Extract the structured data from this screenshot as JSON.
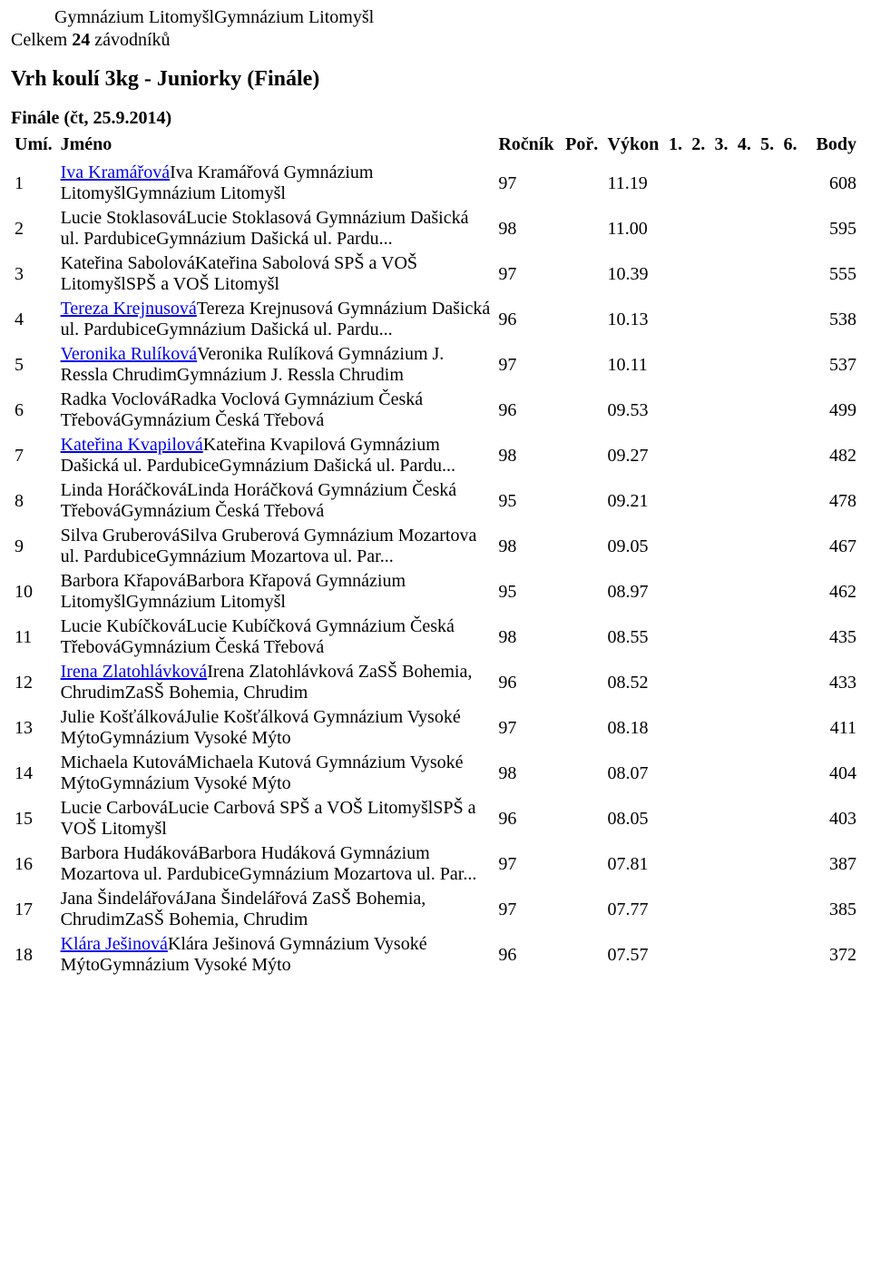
{
  "header": {
    "venue": "Gymnázium LitomyšlGymnázium Litomyšl",
    "summary_pre": "Celkem ",
    "summary_count": "24",
    "summary_post": " závodníků"
  },
  "event": {
    "title": "Vrh koulí 3kg - Juniorky (Finále)",
    "round": "Finále (čt, 25.9.2014)"
  },
  "table": {
    "headers": {
      "place": "Umí.",
      "name": "Jméno",
      "year": "Ročník",
      "por": "Poř.",
      "perf": "Výkon",
      "c1": "1.",
      "c2": "2.",
      "c3": "3.",
      "c4": "4.",
      "c5": "5.",
      "c6": "6.",
      "body": "Body"
    }
  },
  "rows": [
    {
      "place": "1",
      "link": "Iva Kramářová",
      "rest": "Iva Kramářová Gymnázium LitomyšlGymnázium Litomyšl",
      "year": "97",
      "perf": "11.19",
      "body": "608"
    },
    {
      "place": "2",
      "link": "",
      "rest": "Lucie StoklasováLucie Stoklasová Gymnázium Dašická ul. PardubiceGymnázium Dašická ul. Pardu...",
      "year": "98",
      "perf": "11.00",
      "body": "595"
    },
    {
      "place": "3",
      "link": "",
      "rest": "Kateřina SabolováKateřina Sabolová SPŠ a VOŠ LitomyšlSPŠ a VOŠ Litomyšl",
      "year": "97",
      "perf": "10.39",
      "body": "555"
    },
    {
      "place": "4",
      "link": "Tereza Krejnusová",
      "rest": "Tereza Krejnusová Gymnázium Dašická ul. PardubiceGymnázium Dašická ul. Pardu...",
      "year": "96",
      "perf": "10.13",
      "body": "538"
    },
    {
      "place": "5",
      "link": "Veronika Rulíková",
      "rest": "Veronika Rulíková Gymnázium J. Ressla ChrudimGymnázium J. Ressla Chrudim",
      "year": "97",
      "perf": "10.11",
      "body": "537"
    },
    {
      "place": "6",
      "link": "",
      "rest": "Radka VoclováRadka Voclová Gymnázium Česká TřebováGymnázium Česká Třebová",
      "year": "96",
      "perf": "09.53",
      "body": "499"
    },
    {
      "place": "7",
      "link": "Kateřina Kvapilová",
      "rest": "Kateřina Kvapilová Gymnázium Dašická ul. PardubiceGymnázium Dašická ul. Pardu...",
      "year": "98",
      "perf": "09.27",
      "body": "482"
    },
    {
      "place": "8",
      "link": "",
      "rest": "Linda HoráčkováLinda Horáčková Gymnázium Česká TřebováGymnázium Česká Třebová",
      "year": "95",
      "perf": "09.21",
      "body": "478"
    },
    {
      "place": "9",
      "link": "",
      "rest": "Silva GruberováSilva Gruberová Gymnázium Mozartova ul. PardubiceGymnázium Mozartova ul. Par...",
      "year": "98",
      "perf": "09.05",
      "body": "467"
    },
    {
      "place": "10",
      "link": "",
      "rest": "Barbora KřapováBarbora Křapová Gymnázium LitomyšlGymnázium Litomyšl",
      "year": "95",
      "perf": "08.97",
      "body": "462"
    },
    {
      "place": "11",
      "link": "",
      "rest": "Lucie KubíčkováLucie Kubíčková Gymnázium Česká TřebováGymnázium Česká Třebová",
      "year": "98",
      "perf": "08.55",
      "body": "435"
    },
    {
      "place": "12",
      "link": "Irena Zlatohlávková",
      "rest": "Irena Zlatohlávková ZaSŠ Bohemia, ChrudimZaSŠ Bohemia, Chrudim",
      "year": "96",
      "perf": "08.52",
      "body": "433"
    },
    {
      "place": "13",
      "link": "",
      "rest": "Julie KošťálkováJulie Košťálková Gymnázium Vysoké MýtoGymnázium Vysoké Mýto",
      "year": "97",
      "perf": "08.18",
      "body": "411"
    },
    {
      "place": "14",
      "link": "",
      "rest": "Michaela KutováMichaela Kutová Gymnázium Vysoké MýtoGymnázium Vysoké Mýto",
      "year": "98",
      "perf": "08.07",
      "body": "404"
    },
    {
      "place": "15",
      "link": "",
      "rest": "Lucie CarbováLucie Carbová SPŠ a VOŠ LitomyšlSPŠ a VOŠ Litomyšl",
      "year": "96",
      "perf": "08.05",
      "body": "403"
    },
    {
      "place": "16",
      "link": "",
      "rest": "Barbora HudákováBarbora Hudáková Gymnázium Mozartova ul. PardubiceGymnázium Mozartova ul. Par...",
      "year": "97",
      "perf": "07.81",
      "body": "387"
    },
    {
      "place": "17",
      "link": "",
      "rest": "Jana ŠindelářováJana Šindelářová ZaSŠ Bohemia, ChrudimZaSŠ Bohemia, Chrudim",
      "year": "97",
      "perf": "07.77",
      "body": "385"
    },
    {
      "place": "18",
      "link": "Klára Ješinová",
      "rest": "Klára Ješinová Gymnázium Vysoké MýtoGymnázium Vysoké Mýto",
      "year": "96",
      "perf": "07.57",
      "body": "372"
    }
  ]
}
